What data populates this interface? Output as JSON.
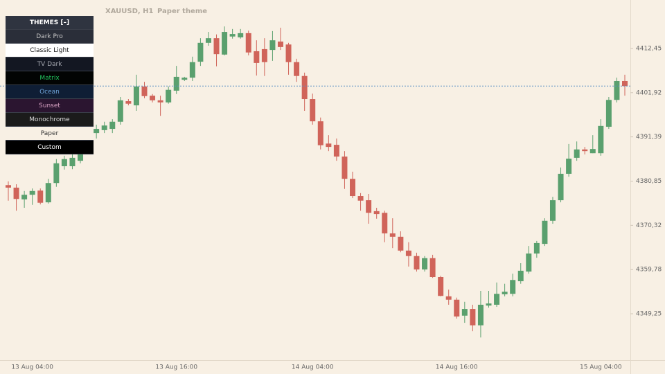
{
  "chart_data": {
    "type": "candlestick",
    "title": "XAUUSD, H1",
    "subtitle": "Paper theme",
    "up_color": "#5aa06e",
    "down_color": "#d0645a",
    "price_line": true,
    "price_line_color": "#5b8fc4",
    "categories": [
      null,
      null,
      null,
      "13 Aug 04:00",
      null,
      null,
      null,
      null,
      null,
      null,
      null,
      null,
      null,
      null,
      null,
      null,
      null,
      null,
      null,
      null,
      null,
      "13 Aug 16:00",
      null,
      null,
      null,
      null,
      null,
      null,
      null,
      null,
      null,
      null,
      null,
      null,
      null,
      null,
      null,
      null,
      "14 Aug 04:00",
      null,
      null,
      null,
      null,
      null,
      null,
      null,
      null,
      null,
      null,
      null,
      null,
      null,
      null,
      null,
      null,
      null,
      "14 Aug 16:00",
      null,
      null,
      null,
      null,
      null,
      null,
      null,
      null,
      null,
      null,
      null,
      null,
      null,
      null,
      null,
      null,
      null,
      "15 Aug 04:00",
      null,
      null,
      null
    ],
    "open": [
      4379.9,
      4379.3,
      4376.5,
      4377.6,
      4378.6,
      4375.8,
      4380.4,
      4384.4,
      4384.4,
      4385.7,
      4388.0,
      4392.3,
      4393.0,
      4393.3,
      4395.0,
      4399.9,
      4398.9,
      4403.4,
      4401.2,
      4400.1,
      4399.6,
      4402.4,
      4405.0,
      4405.5,
      4409.3,
      4413.8,
      4414.9,
      4411.0,
      4415.3,
      4415.1,
      4416.1,
      4411.8,
      4412.3,
      4412.1,
      4414.1,
      4413.4,
      4409.2,
      4405.9,
      4400.4,
      4395.1,
      4389.8,
      4389.5,
      4386.7,
      4381.4,
      4377.3,
      4376.3,
      4373.7,
      4373.3,
      4368.4,
      4367.6,
      4364.3,
      4363.0,
      4359.8,
      4362.5,
      4358.0,
      4353.4,
      4352.6,
      4348.8,
      4350.4,
      4346.5,
      4351.2,
      4351.4,
      4353.9,
      4354.0,
      4357.0,
      4359.3,
      4363.6,
      4365.9,
      4371.4,
      4376.3,
      4382.6,
      4386.4,
      4388.4,
      4387.5,
      4387.5,
      4393.8,
      4400.2,
      4404.7
    ],
    "high": [
      4380.8,
      4380.1,
      4378.5,
      4379.1,
      4379.1,
      4381.4,
      4386.1,
      4386.9,
      4388.0,
      4389.4,
      4391.0,
      4394.3,
      4395.0,
      4395.6,
      4400.9,
      4400.4,
      4406.2,
      4404.5,
      4401.6,
      4401.2,
      4403.4,
      4408.3,
      4405.7,
      4410.5,
      4414.9,
      4416.4,
      4415.8,
      4417.7,
      4417.1,
      4417.1,
      4416.7,
      4414.4,
      4414.9,
      4416.6,
      4417.4,
      4413.8,
      4410.0,
      4406.7,
      4401.7,
      4396.0,
      4391.8,
      4391.0,
      4388.0,
      4383.1,
      4378.0,
      4377.8,
      4374.5,
      4373.8,
      4372.0,
      4368.9,
      4366.3,
      4363.8,
      4363.0,
      4363.3,
      4358.3,
      4355.0,
      4353.1,
      4352.1,
      4351.4,
      4354.7,
      4354.7,
      4356.7,
      4356.4,
      4358.8,
      4361.3,
      4365.4,
      4366.6,
      4372.0,
      4377.1,
      4384.1,
      4389.7,
      4390.3,
      4389.0,
      4391.8,
      4395.6,
      4400.9,
      4405.5,
      4406.2
    ],
    "low": [
      4376.2,
      4373.8,
      4374.5,
      4375.2,
      4375.3,
      4375.5,
      4379.5,
      4383.6,
      4383.7,
      4385.1,
      4387.4,
      4391.0,
      4392.3,
      4392.3,
      4394.3,
      4398.9,
      4397.6,
      4400.6,
      4399.6,
      4396.4,
      4399.3,
      4401.6,
      4404.7,
      4404.7,
      4408.3,
      4413.1,
      4408.2,
      4410.8,
      4414.8,
      4414.8,
      4410.8,
      4406.0,
      4405.9,
      4409.5,
      4412.1,
      4406.2,
      4404.5,
      4397.6,
      4394.3,
      4388.4,
      4388.0,
      4385.7,
      4379.0,
      4376.8,
      4373.8,
      4370.7,
      4371.9,
      4366.3,
      4364.9,
      4363.9,
      4360.5,
      4359.3,
      4359.3,
      4357.8,
      4353.4,
      4351.4,
      4348.1,
      4347.1,
      4345.1,
      4343.6,
      4350.7,
      4350.9,
      4353.4,
      4353.4,
      4356.4,
      4358.8,
      4362.6,
      4365.4,
      4370.7,
      4375.8,
      4381.9,
      4385.7,
      4387.2,
      4387.5,
      4386.9,
      4393.3,
      4399.6,
      4401.2
    ],
    "close": [
      4379.3,
      4376.6,
      4377.6,
      4378.5,
      4375.7,
      4380.4,
      4385.1,
      4386.1,
      4386.4,
      4388.5,
      4390.2,
      4393.3,
      4394.1,
      4395.0,
      4400.1,
      4399.3,
      4403.4,
      4401.1,
      4400.1,
      4399.6,
      4402.6,
      4405.7,
      4405.5,
      4409.2,
      4413.8,
      4414.9,
      4411.1,
      4416.4,
      4415.9,
      4416.1,
      4411.5,
      4409.0,
      4409.2,
      4414.4,
      4412.8,
      4409.2,
      4405.9,
      4400.4,
      4395.1,
      4389.4,
      4389.0,
      4386.7,
      4381.4,
      4377.3,
      4376.2,
      4373.3,
      4373.0,
      4368.4,
      4367.6,
      4364.3,
      4363.0,
      4359.8,
      4362.5,
      4358.0,
      4353.5,
      4352.6,
      4348.6,
      4350.4,
      4346.5,
      4351.4,
      4351.7,
      4354.0,
      4354.5,
      4357.3,
      4359.5,
      4363.6,
      4366.1,
      4371.4,
      4376.3,
      4382.6,
      4386.2,
      4388.4,
      4388.0,
      4388.5,
      4394.0,
      4400.2,
      4404.7,
      4403.5
    ],
    "ylim": [
      4338.2,
      4424.0
    ],
    "yticks": [
      {
        "value": 4412.45,
        "label": "4412,45"
      },
      {
        "value": 4401.92,
        "label": "4401,92"
      },
      {
        "value": 4391.39,
        "label": "4391,39"
      },
      {
        "value": 4380.85,
        "label": "4380,85"
      },
      {
        "value": 4370.32,
        "label": "4370,32"
      },
      {
        "value": 4359.78,
        "label": "4359,78"
      },
      {
        "value": 4349.25,
        "label": "4349,25"
      }
    ],
    "axis_side": "right"
  },
  "theme_menu": {
    "title": "THEMES [–]",
    "items": [
      {
        "label": "Dark Pro",
        "bg": "#2a2e39",
        "fg": "#c8c8c8"
      },
      {
        "label": "Classic Light",
        "bg": "#ffffff",
        "fg": "#111111"
      },
      {
        "label": "TV Dark",
        "bg": "#131722",
        "fg": "#a8abb3"
      },
      {
        "label": "Matrix",
        "bg": "#020403",
        "fg": "#22c55e"
      },
      {
        "label": "Ocean",
        "bg": "#0f1e35",
        "fg": "#6fa3d8"
      },
      {
        "label": "Sunset",
        "bg": "#2b1530",
        "fg": "#d9a3c4"
      },
      {
        "label": "Monochrome",
        "bg": "#1b1b1b",
        "fg": "#dddddd"
      },
      {
        "label": "Paper",
        "bg": "#f8f0e4",
        "fg": "#333333"
      },
      {
        "label": "Custom",
        "bg": "#000000",
        "fg": "#ffffff"
      }
    ]
  }
}
